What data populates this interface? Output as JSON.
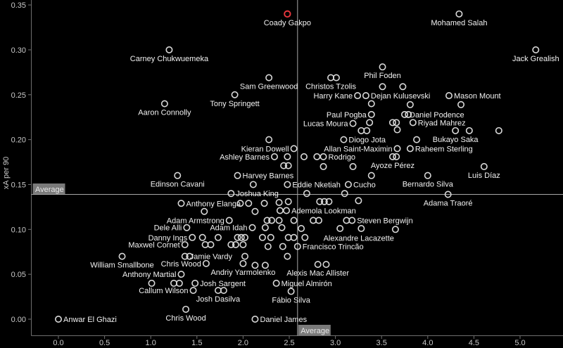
{
  "chart_data": {
    "type": "scatter",
    "title": "",
    "xlabel": "",
    "ylabel": "xA per 90",
    "xlim": [
      -0.29,
      5.47
    ],
    "ylim": [
      -0.019,
      0.356
    ],
    "grid": false,
    "x_ticks": [
      0,
      0.5,
      1,
      1.5,
      2,
      2.5,
      3,
      3.5,
      4,
      4.5,
      5
    ],
    "x_tick_labels": [
      "0.0",
      "0.5",
      "1.0",
      "1.5",
      "2.0",
      "2.5",
      "3.0",
      "3.5",
      "4.0",
      "4.5",
      "5.0"
    ],
    "y_ticks": [
      0,
      0.05,
      0.1,
      0.15,
      0.2,
      0.25,
      0.3,
      0.35
    ],
    "y_tick_labels": [
      "0.00",
      "0.05",
      "0.10",
      "0.15",
      "0.20",
      "0.25",
      "0.30",
      "0.35"
    ],
    "average_lines": {
      "label": "Average",
      "x_value": 2.59,
      "y_value": 0.139
    },
    "highlighted_point": "Coady Gakpo",
    "colors": {
      "background": "#000000",
      "marker": "#d8d8d8",
      "highlight": "#e8363d",
      "axis": "#6f6f6f",
      "average_line": "#a8a8a8",
      "average_badge_bg": "#7a7a7a",
      "average_badge_text": "#e9e9e9",
      "label_text": "#f2f2f2",
      "tick_text": "#c9c9c9"
    },
    "points": [
      {
        "name": "Coady Gakpo",
        "x": 2.48,
        "y": 0.34,
        "label_pos": "below",
        "color": "highlight"
      },
      {
        "name": "Mohamed Salah",
        "x": 4.34,
        "y": 0.34,
        "label_pos": "below"
      },
      {
        "name": "Jack Grealish",
        "x": 5.17,
        "y": 0.3,
        "label_pos": "below"
      },
      {
        "name": "Carney Chukwuemeka",
        "x": 1.2,
        "y": 0.3,
        "label_pos": "below"
      },
      {
        "name": "Sam Greenwood",
        "x": 2.28,
        "y": 0.269,
        "label_pos": "below"
      },
      {
        "name": "Christos Tzolis",
        "x": 2.95,
        "y": 0.269,
        "label_pos": "below"
      },
      {
        "name": "Phil Foden",
        "x": 3.51,
        "y": 0.281,
        "label_pos": "below"
      },
      {
        "name": "Tony Springett",
        "x": 1.91,
        "y": 0.25,
        "label_pos": "below"
      },
      {
        "name": "Aaron Connolly",
        "x": 1.15,
        "y": 0.24,
        "label_pos": "below"
      },
      {
        "name": "Harry Kane",
        "x": 3.24,
        "y": 0.249,
        "label_pos": "left"
      },
      {
        "name": "Dejan Kulusevski",
        "x": 3.33,
        "y": 0.249,
        "label_pos": "right"
      },
      {
        "name": "Mason Mount",
        "x": 4.23,
        "y": 0.249,
        "label_pos": "right"
      },
      {
        "name": "Paul Pogba",
        "x": 3.39,
        "y": 0.228,
        "label_pos": "left"
      },
      {
        "name": "Daniel Podence",
        "x": 3.75,
        "y": 0.228,
        "label_pos": "right"
      },
      {
        "name": "Lucas Moura",
        "x": 3.19,
        "y": 0.218,
        "label_pos": "left"
      },
      {
        "name": "Riyad Mahrez",
        "x": 3.84,
        "y": 0.219,
        "label_pos": "right"
      },
      {
        "name": "Diogo Jota",
        "x": 3.09,
        "y": 0.2,
        "label_pos": "right"
      },
      {
        "name": "Bukayo Saka",
        "x": 4.3,
        "y": 0.21,
        "label_pos": "below"
      },
      {
        "name": "Allan Saint-Maximin",
        "x": 3.67,
        "y": 0.19,
        "label_pos": "left"
      },
      {
        "name": "Raheem Sterling",
        "x": 3.81,
        "y": 0.19,
        "label_pos": "right"
      },
      {
        "name": "Kieran Dowell",
        "x": 2.55,
        "y": 0.19,
        "label_pos": "left"
      },
      {
        "name": "Ashley Barnes",
        "x": 2.34,
        "y": 0.181,
        "label_pos": "left"
      },
      {
        "name": "Rodrigo",
        "x": 2.87,
        "y": 0.181,
        "label_pos": "right"
      },
      {
        "name": "Ayoze Pérez",
        "x": 3.62,
        "y": 0.181,
        "label_pos": "below"
      },
      {
        "name": "Luis Díaz",
        "x": 4.61,
        "y": 0.17,
        "label_pos": "below"
      },
      {
        "name": "Harvey Barnes",
        "x": 1.94,
        "y": 0.16,
        "label_pos": "right"
      },
      {
        "name": "Edinson Cavani",
        "x": 1.29,
        "y": 0.16,
        "label_pos": "below"
      },
      {
        "name": "Eddie Nketiah",
        "x": 2.48,
        "y": 0.15,
        "label_pos": "right"
      },
      {
        "name": "Cucho",
        "x": 3.14,
        "y": 0.15,
        "label_pos": "right"
      },
      {
        "name": "Bernardo Silva",
        "x": 4.0,
        "y": 0.16,
        "label_pos": "below"
      },
      {
        "name": "Joshua King",
        "x": 1.87,
        "y": 0.14,
        "label_pos": "right"
      },
      {
        "name": "Adama Traoré",
        "x": 4.22,
        "y": 0.139,
        "label_pos": "below"
      },
      {
        "name": "Anthony Elanga",
        "x": 1.33,
        "y": 0.129,
        "label_pos": "right"
      },
      {
        "name": "Ademola Lookman",
        "x": 2.47,
        "y": 0.121,
        "label_pos": "right"
      },
      {
        "name": "Adam Armstrong",
        "x": 1.85,
        "y": 0.11,
        "label_pos": "left"
      },
      {
        "name": "Steven Bergwijn",
        "x": 3.18,
        "y": 0.11,
        "label_pos": "right"
      },
      {
        "name": "Dele Alli",
        "x": 1.39,
        "y": 0.102,
        "label_pos": "left"
      },
      {
        "name": "Adam Idah",
        "x": 2.1,
        "y": 0.102,
        "label_pos": "left"
      },
      {
        "name": "Danny Ings",
        "x": 1.45,
        "y": 0.091,
        "label_pos": "left"
      },
      {
        "name": "Alexandre Lacazette",
        "x": 3.65,
        "y": 0.1,
        "label_pos": "below-left"
      },
      {
        "name": "Maxwel Cornet",
        "x": 1.37,
        "y": 0.083,
        "label_pos": "left"
      },
      {
        "name": "Francisco Trincão",
        "x": 2.59,
        "y": 0.081,
        "label_pos": "right"
      },
      {
        "name": "Jamie Vardy",
        "x": 1.37,
        "y": 0.07,
        "label_pos": "right"
      },
      {
        "name": "William Smallbone",
        "x": 0.69,
        "y": 0.07,
        "label_pos": "below"
      },
      {
        "name": "Chris Wood",
        "x": 1.6,
        "y": 0.062,
        "label_pos": "left"
      },
      {
        "name": "Andriy Yarmolenko",
        "x": 2.0,
        "y": 0.062,
        "label_pos": "below"
      },
      {
        "name": "Alexis Mac Allister",
        "x": 2.81,
        "y": 0.061,
        "label_pos": "below"
      },
      {
        "name": "Anthony Martial",
        "x": 1.33,
        "y": 0.05,
        "label_pos": "left"
      },
      {
        "name": "Josh Sargent",
        "x": 1.48,
        "y": 0.04,
        "label_pos": "right"
      },
      {
        "name": "Miguel Almirón",
        "x": 2.36,
        "y": 0.04,
        "label_pos": "right"
      },
      {
        "name": "Callum Wilson",
        "x": 1.46,
        "y": 0.032,
        "label_pos": "left"
      },
      {
        "name": "Josh Dasilva",
        "x": 1.73,
        "y": 0.032,
        "label_pos": "below"
      },
      {
        "name": "Fábio Silva",
        "x": 2.52,
        "y": 0.031,
        "label_pos": "below"
      },
      {
        "name": "Chris Wood",
        "x": 1.38,
        "y": 0.011,
        "label_pos": "below"
      },
      {
        "name": "Anwar El Ghazi",
        "x": 0.0,
        "y": 0.0,
        "label_pos": "right"
      },
      {
        "name": "Daniel James",
        "x": 2.13,
        "y": 0.0,
        "label_pos": "right"
      }
    ],
    "unlabeled_points": [
      [
        3.01,
        0.269
      ],
      [
        3.51,
        0.259
      ],
      [
        3.73,
        0.259
      ],
      [
        3.39,
        0.24
      ],
      [
        3.81,
        0.239
      ],
      [
        4.36,
        0.239
      ],
      [
        3.79,
        0.228
      ],
      [
        3.37,
        0.219
      ],
      [
        3.62,
        0.219
      ],
      [
        3.66,
        0.219
      ],
      [
        3.28,
        0.21
      ],
      [
        3.34,
        0.21
      ],
      [
        3.67,
        0.211
      ],
      [
        4.45,
        0.21
      ],
      [
        4.77,
        0.21
      ],
      [
        2.28,
        0.2
      ],
      [
        3.88,
        0.2
      ],
      [
        2.48,
        0.181
      ],
      [
        2.66,
        0.181
      ],
      [
        2.8,
        0.181
      ],
      [
        3.66,
        0.181
      ],
      [
        2.44,
        0.171
      ],
      [
        2.49,
        0.171
      ],
      [
        2.87,
        0.17
      ],
      [
        3.19,
        0.17
      ],
      [
        3.39,
        0.16
      ],
      [
        2.11,
        0.15
      ],
      [
        2.69,
        0.14
      ],
      [
        3.1,
        0.14
      ],
      [
        1.97,
        0.129
      ],
      [
        2.06,
        0.129
      ],
      [
        2.23,
        0.129
      ],
      [
        2.39,
        0.13
      ],
      [
        2.49,
        0.131
      ],
      [
        2.83,
        0.131
      ],
      [
        2.88,
        0.131
      ],
      [
        2.93,
        0.131
      ],
      [
        3.25,
        0.132
      ],
      [
        1.58,
        0.12
      ],
      [
        2.13,
        0.12
      ],
      [
        2.4,
        0.121
      ],
      [
        2.26,
        0.11
      ],
      [
        2.31,
        0.11
      ],
      [
        2.39,
        0.11
      ],
      [
        2.55,
        0.11
      ],
      [
        2.76,
        0.11
      ],
      [
        2.82,
        0.11
      ],
      [
        3.12,
        0.11
      ],
      [
        2.24,
        0.102
      ],
      [
        2.42,
        0.102
      ],
      [
        2.63,
        0.101
      ],
      [
        3.05,
        0.101
      ],
      [
        3.28,
        0.101
      ],
      [
        1.56,
        0.091
      ],
      [
        1.73,
        0.091
      ],
      [
        1.94,
        0.091
      ],
      [
        1.98,
        0.091
      ],
      [
        2.02,
        0.091
      ],
      [
        2.21,
        0.091
      ],
      [
        2.3,
        0.091
      ],
      [
        2.49,
        0.091
      ],
      [
        2.55,
        0.091
      ],
      [
        2.67,
        0.091
      ],
      [
        1.59,
        0.083
      ],
      [
        1.65,
        0.083
      ],
      [
        1.87,
        0.083
      ],
      [
        1.92,
        0.083
      ],
      [
        2.0,
        0.083
      ],
      [
        2.27,
        0.081
      ],
      [
        2.43,
        0.081
      ],
      [
        1.42,
        0.07
      ],
      [
        2.02,
        0.07
      ],
      [
        2.48,
        0.07
      ],
      [
        2.13,
        0.06
      ],
      [
        2.24,
        0.06
      ],
      [
        2.9,
        0.061
      ],
      [
        1.01,
        0.04
      ],
      [
        1.25,
        0.04
      ],
      [
        1.31,
        0.04
      ],
      [
        1.79,
        0.032
      ]
    ]
  }
}
